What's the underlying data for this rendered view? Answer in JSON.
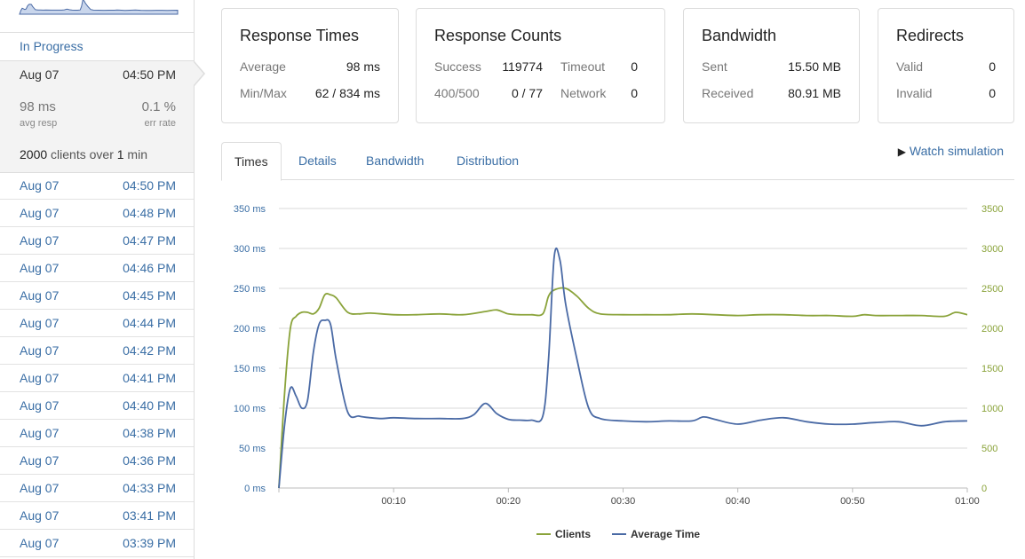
{
  "sidebar": {
    "in_progress": "In Progress",
    "current": {
      "date": "Aug 07",
      "time": "04:50 PM",
      "avg_resp": "98 ms",
      "avg_resp_label": "avg resp",
      "err_rate": "0.1 %",
      "err_rate_label": "err rate",
      "clients_count": "2000",
      "clients_mid": " clients over ",
      "duration": "1",
      "duration_unit": " min"
    },
    "runs": [
      {
        "date": "Aug 07",
        "time": "04:50 PM"
      },
      {
        "date": "Aug 07",
        "time": "04:48 PM"
      },
      {
        "date": "Aug 07",
        "time": "04:47 PM"
      },
      {
        "date": "Aug 07",
        "time": "04:46 PM"
      },
      {
        "date": "Aug 07",
        "time": "04:45 PM"
      },
      {
        "date": "Aug 07",
        "time": "04:44 PM"
      },
      {
        "date": "Aug 07",
        "time": "04:42 PM"
      },
      {
        "date": "Aug 07",
        "time": "04:41 PM"
      },
      {
        "date": "Aug 07",
        "time": "04:40 PM"
      },
      {
        "date": "Aug 07",
        "time": "04:38 PM"
      },
      {
        "date": "Aug 07",
        "time": "04:36 PM"
      },
      {
        "date": "Aug 07",
        "time": "04:33 PM"
      },
      {
        "date": "Aug 07",
        "time": "03:41 PM"
      },
      {
        "date": "Aug 07",
        "time": "03:39 PM"
      }
    ]
  },
  "cards": {
    "response_times": {
      "title": "Response Times",
      "average_label": "Average",
      "average": "98 ms",
      "minmax_label": "Min/Max",
      "minmax": "62 / 834 ms"
    },
    "response_counts": {
      "title": "Response Counts",
      "success_label": "Success",
      "success": "119774",
      "timeout_label": "Timeout",
      "timeout": "0",
      "err_label": "400/500",
      "err": "0 / 77",
      "network_label": "Network",
      "network": "0"
    },
    "bandwidth": {
      "title": "Bandwidth",
      "sent_label": "Sent",
      "sent": "15.50 MB",
      "received_label": "Received",
      "received": "80.91 MB"
    },
    "redirects": {
      "title": "Redirects",
      "valid_label": "Valid",
      "valid": "0",
      "invalid_label": "Invalid",
      "invalid": "0"
    }
  },
  "tabs": [
    {
      "label": "Times",
      "active": true
    },
    {
      "label": "Details"
    },
    {
      "label": "Bandwidth"
    },
    {
      "label": "Distribution"
    }
  ],
  "watch_label": "Watch simulation",
  "colors": {
    "clients": "#8aa33a",
    "avg_time": "#4a6aa5",
    "link": "#3a6ea5"
  },
  "chart_data": {
    "type": "line",
    "left_axis": {
      "ticks": [
        "0 ms",
        "50 ms",
        "100 ms",
        "150 ms",
        "200 ms",
        "250 ms",
        "300 ms",
        "350 ms"
      ],
      "range": [
        0,
        350
      ]
    },
    "right_axis": {
      "ticks": [
        "0",
        "500",
        "1000",
        "1500",
        "2000",
        "2500",
        "3000",
        "3500"
      ],
      "range": [
        0,
        3500
      ]
    },
    "x_ticks": [
      "00:10",
      "00:20",
      "00:30",
      "00:40",
      "00:50",
      "01:00"
    ],
    "x_tick_values": [
      10,
      20,
      30,
      40,
      50,
      60
    ],
    "x_range": [
      0,
      60
    ],
    "series": [
      {
        "name": "Clients",
        "axis": "right",
        "x": [
          0,
          0.5,
          1,
          1.5,
          2,
          2.5,
          3,
          3.5,
          4,
          4.5,
          5,
          6,
          7,
          8,
          10,
          12,
          14,
          16,
          18,
          19,
          20,
          21,
          22,
          23,
          23.5,
          24,
          25,
          26,
          27,
          28,
          30,
          32,
          34,
          36,
          38,
          40,
          42,
          44,
          46,
          48,
          50,
          51,
          52,
          54,
          56,
          58,
          59,
          60
        ],
        "values": [
          0,
          1200,
          2000,
          2150,
          2200,
          2200,
          2180,
          2250,
          2420,
          2420,
          2380,
          2200,
          2180,
          2190,
          2170,
          2170,
          2180,
          2170,
          2210,
          2230,
          2180,
          2170,
          2170,
          2180,
          2400,
          2480,
          2500,
          2400,
          2250,
          2180,
          2170,
          2170,
          2170,
          2180,
          2170,
          2160,
          2170,
          2170,
          2160,
          2160,
          2150,
          2170,
          2160,
          2160,
          2160,
          2150,
          2200,
          2170
        ]
      },
      {
        "name": "Average Time",
        "axis": "left",
        "x": [
          0,
          0.5,
          1,
          1.5,
          2,
          2.5,
          3,
          3.5,
          4,
          4.5,
          5,
          6,
          7,
          8,
          9,
          10,
          12,
          14,
          16,
          17,
          18,
          19,
          20,
          21,
          22,
          23,
          23.5,
          24,
          24.5,
          25,
          26,
          27,
          28,
          30,
          32,
          34,
          36,
          37,
          38,
          40,
          42,
          44,
          46,
          48,
          50,
          52,
          54,
          56,
          58,
          60
        ],
        "values": [
          0,
          80,
          125,
          115,
          100,
          110,
          170,
          205,
          210,
          205,
          160,
          95,
          90,
          88,
          87,
          88,
          87,
          87,
          87,
          92,
          106,
          93,
          86,
          85,
          85,
          90,
          160,
          290,
          285,
          230,
          160,
          100,
          87,
          84,
          83,
          84,
          84,
          89,
          86,
          80,
          85,
          88,
          83,
          80,
          80,
          82,
          83,
          78,
          83,
          84
        ]
      }
    ]
  }
}
